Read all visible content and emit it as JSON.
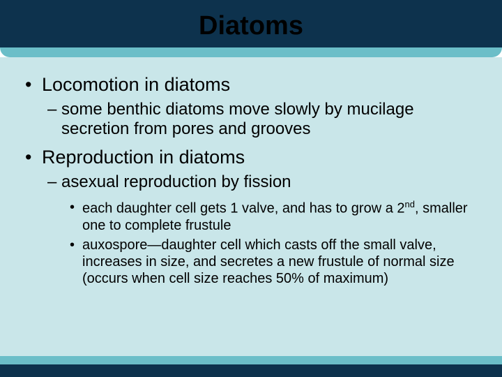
{
  "colors": {
    "header_dark": "#0d324d",
    "header_light": "#6bbec8",
    "body_bg": "#c9e6e9",
    "text": "#000000"
  },
  "title": "Diatoms",
  "bullets": {
    "loco_heading": "Locomotion in diatoms",
    "loco_sub": "some benthic diatoms move slowly by mucilage secretion from pores and grooves",
    "repro_heading": "Reproduction in diatoms",
    "repro_sub": "asexual reproduction by fission",
    "repro_l3a_pre": "each daughter cell gets 1 valve, and has to grow a 2",
    "repro_l3a_sup": "nd",
    "repro_l3a_post": ", smaller one to complete frustule",
    "repro_l3b": "auxospore—daughter cell which casts off the small valve, increases in size, and secretes a new frustule of normal size (occurs when cell size reaches 50% of maximum)"
  }
}
